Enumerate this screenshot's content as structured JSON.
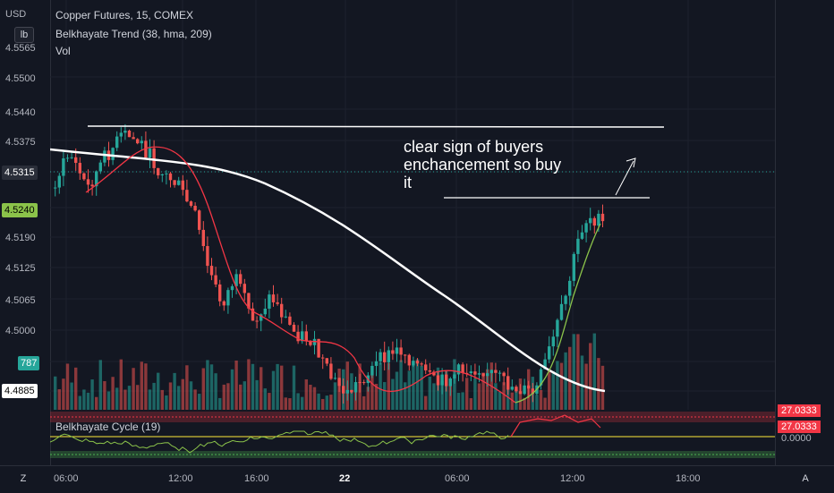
{
  "legend": {
    "title": "Copper Futures, 15, COMEX",
    "trend": "Belkhayate Trend (38, hma, 209)",
    "volume": "Vol",
    "cycle": "Belkhayate Cycle  (19)"
  },
  "currency": "USD",
  "unit": "lb",
  "price_axis": [
    "4.5565",
    "4.5500",
    "4.5440",
    "4.5375",
    "4.5190",
    "4.5125",
    "4.5065",
    "4.5000"
  ],
  "price_tags": {
    "current": "4.5315",
    "trend_level": "4.5240",
    "volume": "787",
    "trend_low": "4.4885"
  },
  "oscillator_tags": {
    "upper": "27.0333",
    "lower": "27.0333",
    "zero": "0.0000"
  },
  "time_axis": [
    "06:00",
    "12:00",
    "16:00",
    "22",
    "06:00",
    "12:00",
    "18:00"
  ],
  "annotation": "clear sign of buyers enchancement so buy it",
  "annotation_lines": [
    "clear sign of buyers",
    "enchancement so buy",
    "it"
  ],
  "corner_buttons": {
    "z": "Z",
    "a": "A"
  },
  "colors": {
    "up": "#26a69a",
    "down": "#ef5350",
    "trend": "#ffffff",
    "accent_green": "#4caf50",
    "yellow": "#ffeb3b"
  }
}
